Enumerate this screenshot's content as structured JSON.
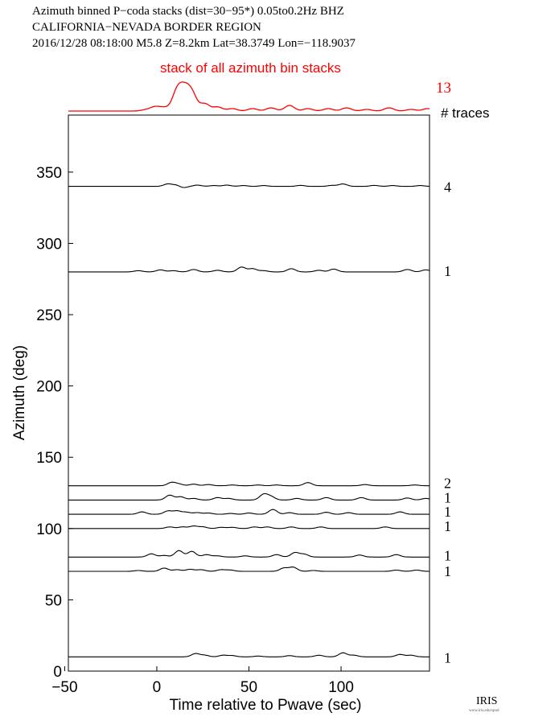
{
  "header": {
    "line1": "Azimuth binned P−coda stacks (dist=30−95*)  0.05to0.2Hz  BHZ",
    "line2": "CALIFORNIA−NEVADA BORDER REGION",
    "line3": "2016/12/28  08:18:00  M5.8  Z=8.2km Lat=38.3749 Lon=−118.9037"
  },
  "stack": {
    "label": "stack of all azimuth bin stacks",
    "count": "13",
    "count_header": "# traces",
    "color": "#ff0000"
  },
  "logo": {
    "text": "IRIS",
    "subtext": "www.iris.edu/spud"
  },
  "chart_data": {
    "type": "line",
    "xlabel": "Time relative to Pwave (sec)",
    "ylabel": "Azimuth (deg)",
    "xlim": [
      -48,
      148
    ],
    "ylim": [
      0,
      390
    ],
    "xticks": [
      -50,
      0,
      50,
      100
    ],
    "yticks": [
      0,
      50,
      100,
      150,
      200,
      250,
      300,
      350
    ],
    "grid": false,
    "series": [
      {
        "azimuth": 340,
        "count": "4",
        "peaks": [
          [
            6,
            3
          ],
          [
            11,
            2
          ],
          [
            14,
            -2
          ],
          [
            22,
            1.5
          ],
          [
            31,
            1
          ],
          [
            38,
            1.5
          ],
          [
            47,
            1
          ],
          [
            58,
            1
          ],
          [
            78,
            1.2
          ],
          [
            95,
            1.2
          ],
          [
            101,
            3
          ],
          [
            118,
            1.2
          ],
          [
            128,
            1
          ],
          [
            143,
            1
          ]
        ]
      },
      {
        "azimuth": 280,
        "count": "1",
        "peaks": [
          [
            -10,
            1.5
          ],
          [
            2,
            2.5
          ],
          [
            9,
            1.5
          ],
          [
            20,
            3
          ],
          [
            33,
            2
          ],
          [
            46,
            6
          ],
          [
            52,
            4
          ],
          [
            58,
            1.5
          ],
          [
            73,
            4
          ],
          [
            88,
            2
          ],
          [
            96,
            3.5
          ],
          [
            136,
            3
          ],
          [
            146,
            2.5
          ]
        ]
      },
      {
        "azimuth": 130,
        "count": "2",
        "peaks": [
          [
            8,
            4
          ],
          [
            12,
            2
          ],
          [
            20,
            2
          ],
          [
            28,
            1.5
          ],
          [
            41,
            1
          ],
          [
            55,
            1
          ],
          [
            65,
            1
          ],
          [
            82,
            4
          ],
          [
            113,
            1.5
          ],
          [
            140,
            1
          ]
        ]
      },
      {
        "azimuth": 120,
        "count": "1",
        "peaks": [
          [
            7,
            6
          ],
          [
            13,
            4
          ],
          [
            20,
            2
          ],
          [
            33,
            3
          ],
          [
            39,
            2
          ],
          [
            58,
            7
          ],
          [
            62,
            4
          ],
          [
            76,
            2
          ],
          [
            92,
            3
          ],
          [
            111,
            3
          ],
          [
            136,
            2.5
          ],
          [
            146,
            2
          ]
        ]
      },
      {
        "azimuth": 110,
        "count": "1",
        "peaks": [
          [
            -8,
            3
          ],
          [
            6,
            4
          ],
          [
            11,
            4
          ],
          [
            16,
            2.5
          ],
          [
            22,
            2
          ],
          [
            28,
            1.5
          ],
          [
            40,
            1
          ],
          [
            50,
            1.5
          ],
          [
            63,
            6
          ],
          [
            72,
            2
          ],
          [
            92,
            2.5
          ],
          [
            104,
            2
          ],
          [
            132,
            3
          ]
        ]
      },
      {
        "azimuth": 100,
        "count": "1",
        "peaks": [
          [
            7,
            2
          ],
          [
            14,
            2
          ],
          [
            20,
            3
          ],
          [
            25,
            2
          ],
          [
            35,
            1.5
          ],
          [
            41,
            1.5
          ],
          [
            53,
            2
          ],
          [
            60,
            2
          ],
          [
            73,
            2
          ],
          [
            89,
            2
          ],
          [
            124,
            2
          ]
        ]
      },
      {
        "azimuth": 80,
        "count": "1",
        "peaks": [
          [
            -3,
            4
          ],
          [
            4,
            2
          ],
          [
            12,
            8
          ],
          [
            19,
            7
          ],
          [
            27,
            3
          ],
          [
            33,
            1.5
          ],
          [
            48,
            1.5
          ],
          [
            65,
            3
          ],
          [
            75,
            5.5
          ],
          [
            80,
            3.5
          ],
          [
            110,
            2.5
          ],
          [
            130,
            3
          ]
        ]
      },
      {
        "azimuth": 70,
        "count": "1",
        "peaks": [
          [
            -10,
            1
          ],
          [
            4,
            4
          ],
          [
            11,
            2
          ],
          [
            18,
            2.5
          ],
          [
            24,
            2
          ],
          [
            35,
            2
          ],
          [
            40,
            1.5
          ],
          [
            69,
            4
          ],
          [
            74,
            5
          ],
          [
            85,
            1
          ],
          [
            130,
            1.5
          ],
          [
            141,
            1.5
          ]
        ]
      },
      {
        "azimuth": 10,
        "count": "1",
        "peaks": [
          [
            21,
            4
          ],
          [
            26,
            2
          ],
          [
            36,
            2
          ],
          [
            41,
            1.5
          ],
          [
            55,
            1
          ],
          [
            72,
            1.5
          ],
          [
            88,
            2
          ],
          [
            101,
            5
          ],
          [
            107,
            2
          ],
          [
            132,
            3
          ],
          [
            138,
            2
          ]
        ]
      }
    ],
    "stack_peaks": [
      [
        -6,
        1.5
      ],
      [
        -1,
        5
      ],
      [
        4,
        4
      ],
      [
        11,
        24
      ],
      [
        15,
        22
      ],
      [
        19,
        21
      ],
      [
        26,
        9
      ],
      [
        33,
        5
      ],
      [
        41,
        3
      ],
      [
        52,
        3
      ],
      [
        62,
        4
      ],
      [
        72,
        7
      ],
      [
        82,
        3
      ],
      [
        93,
        3
      ],
      [
        103,
        4
      ],
      [
        114,
        2
      ],
      [
        126,
        4
      ],
      [
        138,
        2
      ],
      [
        147,
        3
      ]
    ]
  }
}
